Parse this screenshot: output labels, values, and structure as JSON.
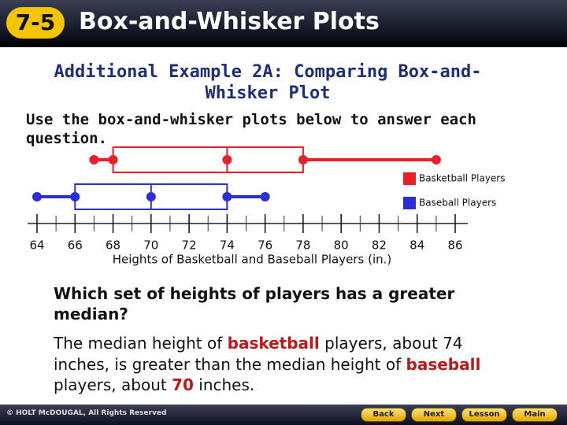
{
  "header": {
    "badge": "7-5",
    "title": "Box-and-Whisker Plots"
  },
  "slide": {
    "heading": "Additional Example 2A: Comparing Box-and-Whisker Plot",
    "instruction": "Use the box-and-whisker plots below to answer each question."
  },
  "chart_data": {
    "type": "box",
    "xlabel": "Heights of Basketball and Baseball Players (in.)",
    "series": [
      {
        "name": "Basketball Players",
        "color": "#e8202a",
        "min": 67,
        "q1": 68,
        "median": 74,
        "q3": 78,
        "max": 85
      },
      {
        "name": "Baseball Players",
        "color": "#2b2fd6",
        "min": 64,
        "q1": 66,
        "median": 70,
        "q3": 74,
        "max": 76
      }
    ],
    "xlim": [
      64,
      86
    ],
    "xticks": [
      64,
      66,
      68,
      70,
      72,
      74,
      76,
      78,
      80,
      82,
      84,
      86
    ]
  },
  "question": "Which set of heights of players has a greater median?",
  "answer": {
    "parts": [
      "The median height of ",
      "basketball",
      " players, about 74 inches, is greater than the median height of ",
      "baseball",
      " players, about ",
      "70",
      " inches."
    ]
  },
  "footer": {
    "copyright": "© HOLT McDOUGAL, All Rights Reserved",
    "buttons": [
      "Back",
      "Next",
      "Lesson",
      "Main"
    ]
  }
}
